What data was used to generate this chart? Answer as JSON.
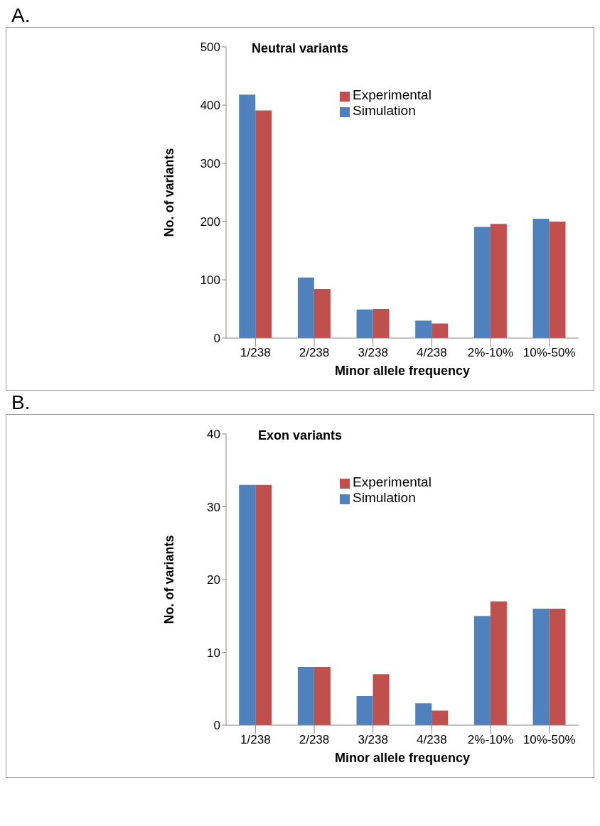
{
  "chart_data": [
    {
      "type": "bar",
      "title": "Neutral variants",
      "xlabel": "Minor allele frequency",
      "ylabel": "No. of variants",
      "annotations": [
        "A."
      ],
      "categories": [
        "1/238",
        "2/238",
        "3/238",
        "4/238",
        "2%-10%",
        "10%-50%"
      ],
      "series": [
        {
          "name": "Simulation",
          "color": "#4f81bd",
          "values": [
            418,
            104,
            49,
            30,
            191,
            205
          ]
        },
        {
          "name": "Experimental",
          "color": "#c0504d",
          "values": [
            391,
            84,
            50,
            25,
            196,
            200
          ]
        }
      ],
      "ylim": [
        0,
        500
      ],
      "yticks": [
        0,
        100,
        200,
        300,
        400,
        500
      ],
      "grid": false,
      "legend": "top right"
    },
    {
      "type": "bar",
      "title": "Exon variants",
      "xlabel": "Minor allele frequency",
      "ylabel": "No. of variants",
      "annotations": [
        "B."
      ],
      "categories": [
        "1/238",
        "2/238",
        "3/238",
        "4/238",
        "2%-10%",
        "10%-50%"
      ],
      "series": [
        {
          "name": "Simulation",
          "color": "#4f81bd",
          "values": [
            33,
            8,
            4,
            3,
            15,
            16
          ]
        },
        {
          "name": "Experimental",
          "color": "#c0504d",
          "values": [
            33,
            8,
            7,
            2,
            17,
            16
          ]
        }
      ],
      "ylim": [
        0,
        40
      ],
      "yticks": [
        0,
        10,
        20,
        30,
        40
      ],
      "grid": false,
      "legend": "top right"
    }
  ]
}
